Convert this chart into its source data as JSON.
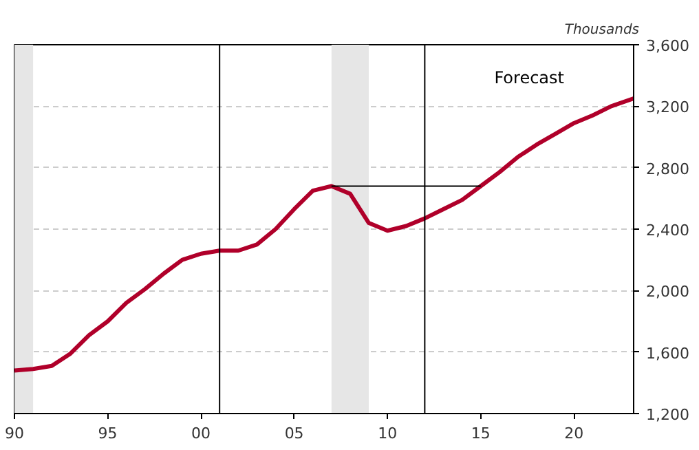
{
  "chart_data": {
    "type": "line",
    "ylabel": "Thousands",
    "annotations": [
      "Forecast"
    ],
    "x": [
      1990,
      1991,
      1992,
      1993,
      1994,
      1995,
      1996,
      1997,
      1998,
      1999,
      2000,
      2001,
      2002,
      2003,
      2004,
      2005,
      2006,
      2007,
      2008,
      2009,
      2010,
      2011,
      2012,
      2013,
      2014,
      2015,
      2016,
      2017,
      2018,
      2019,
      2020,
      2021,
      2022,
      2023.2
    ],
    "series": [
      {
        "color": "#b0002a",
        "values": [
          1480,
          1490,
          1510,
          1590,
          1710,
          1800,
          1920,
          2010,
          2110,
          2200,
          2240,
          2260,
          2260,
          2300,
          2400,
          2530,
          2650,
          2680,
          2630,
          2440,
          2390,
          2420,
          2470,
          2530,
          2590,
          2680,
          2770,
          2870,
          2950,
          3020,
          3090,
          3140,
          3200,
          3250
        ]
      },
      {
        "color": "#000000",
        "x": [
          2007,
          2015
        ],
        "values": [
          2680,
          2680
        ]
      }
    ],
    "xlim": [
      1990,
      2023.2
    ],
    "xticks": [
      {
        "value": 1990,
        "label": "90"
      },
      {
        "value": 1995,
        "label": "95"
      },
      {
        "value": 2000,
        "label": "00"
      },
      {
        "value": 2005,
        "label": "05"
      },
      {
        "value": 2010,
        "label": "10"
      },
      {
        "value": 2015,
        "label": "15"
      },
      {
        "value": 2020,
        "label": "20"
      }
    ],
    "ylim": [
      1200,
      3600
    ],
    "yticks": [
      {
        "value": 1200,
        "label": "1,200"
      },
      {
        "value": 1600,
        "label": "1,600"
      },
      {
        "value": 2000,
        "label": "2,000"
      },
      {
        "value": 2400,
        "label": "2,400"
      },
      {
        "value": 2800,
        "label": "2,800"
      },
      {
        "value": 3200,
        "label": "3,200"
      },
      {
        "value": 3600,
        "label": "3,600"
      }
    ],
    "ref_lines": [
      {
        "axis": "x",
        "value": 2001,
        "color": "#000000"
      },
      {
        "axis": "x",
        "value": 2012,
        "color": "#000000"
      }
    ],
    "bands": [
      {
        "axis": "x",
        "from": 1990,
        "to": 1991,
        "color": "#e6e6e6"
      },
      {
        "axis": "x",
        "from": 2007,
        "to": 2009,
        "color": "#e6e6e6"
      }
    ],
    "grid": "y",
    "line_style": "solid"
  }
}
